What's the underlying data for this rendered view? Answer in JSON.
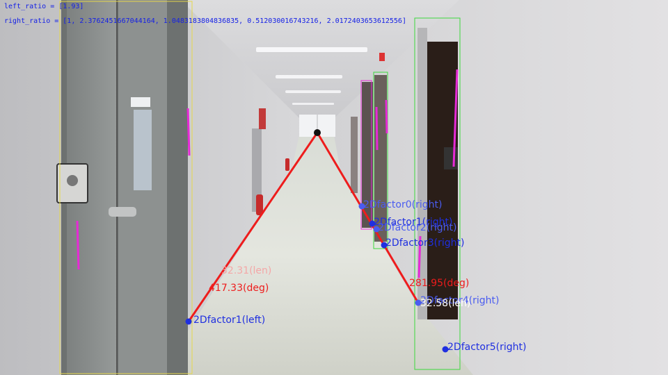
{
  "hud": {
    "left_ratio": "left_ratio = [1.93]",
    "right_ratio": "right_ratio = [1, 2.3762451667044164, 1.0483183804836835, 0.512030016743216, 2.0172403653612556]"
  },
  "measurements": {
    "left_length": "32.31(len)",
    "left_angle": "417.33(deg)",
    "right_angle": "281.95(deg)",
    "right_length": "32.58(len)"
  },
  "points": [
    {
      "label": "2Dfactor1(left)"
    },
    {
      "label": "2Dfactor0(right)"
    },
    {
      "label": "2Dfactor1(right)"
    },
    {
      "label": "2Dfactor2(right)"
    },
    {
      "label": "2Dfactor3(right)"
    },
    {
      "label": "2Dfactor4(right)"
    },
    {
      "label": "2Dfactor5(right)"
    }
  ],
  "colors": {
    "overlay_blue": "#2a3af0",
    "overlay_red": "#ee1c1c",
    "box_yellow": "#e6d84a",
    "box_green": "#3cd83c",
    "line_magenta": "#e62ad6",
    "hud_text": "#1420e6"
  }
}
